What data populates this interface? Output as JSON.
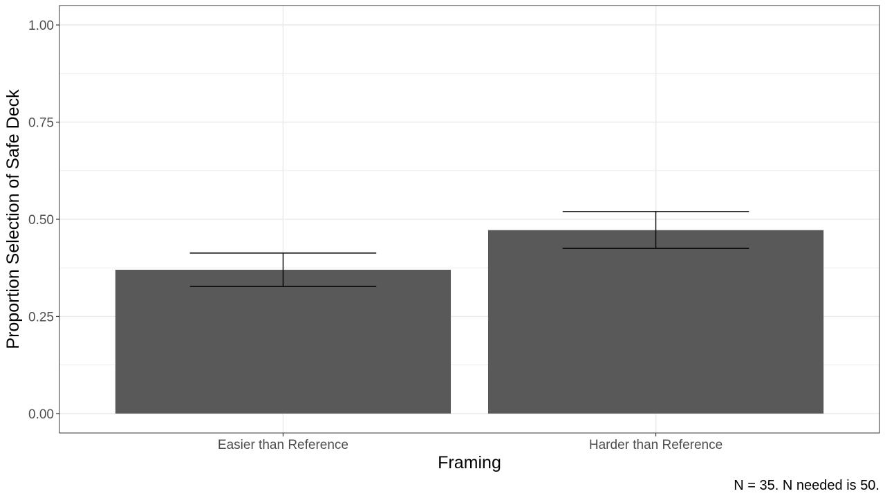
{
  "chart_data": {
    "type": "bar",
    "title": "",
    "xlabel": "Framing",
    "ylabel": "Proportion Selection of Safe Deck",
    "categories": [
      "Easier than Reference",
      "Harder than Reference"
    ],
    "values": [
      0.37,
      0.472
    ],
    "error_bars": [
      {
        "lower": 0.327,
        "upper": 0.413
      },
      {
        "lower": 0.425,
        "upper": 0.52
      }
    ],
    "ylim": [
      -0.05,
      1.05
    ],
    "yticks": [
      0.0,
      0.25,
      0.5,
      0.75,
      1.0
    ],
    "ytick_labels": [
      "0.00",
      "0.25",
      "0.50",
      "0.75",
      "1.00"
    ],
    "grid": true,
    "legend": "none",
    "caption": "N = 35. N needed is 50."
  },
  "colors": {
    "bar": "#595959",
    "grid": "#ebebeb",
    "panel_border": "#333333",
    "tick_label": "#4d4d4d",
    "error_bar": "#000000"
  }
}
